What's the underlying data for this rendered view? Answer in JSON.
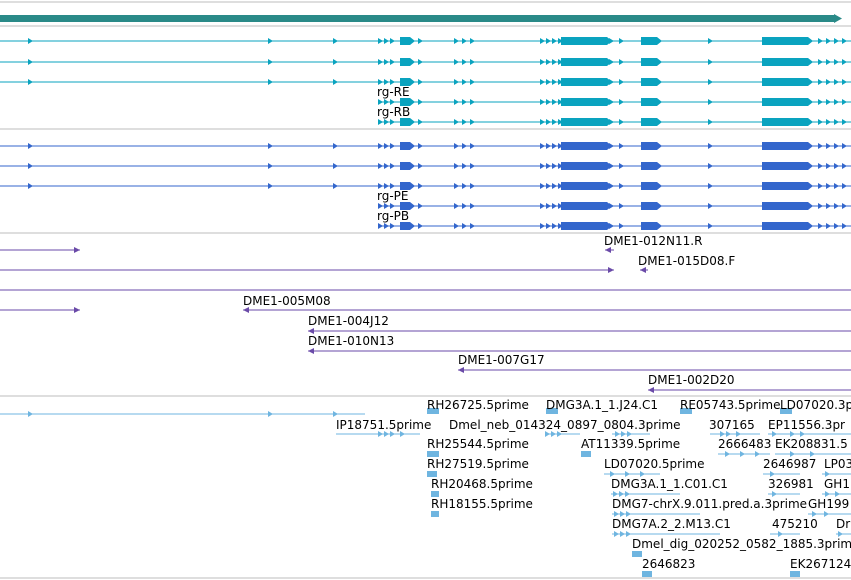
{
  "colors": {
    "gene": "#2a8a88",
    "transcript": "#0aa3bf",
    "protein": "#3366cc",
    "clone": "#6a4aa8",
    "est": "#6fb5e0",
    "divider": "#bdbdbd"
  },
  "transcripts": [
    {
      "name": "rg-RE",
      "label": "rg-RE"
    },
    {
      "name": "rg-RB",
      "label": "rg-RB"
    }
  ],
  "proteins": [
    {
      "name": "rg-PE",
      "label": "rg-PE"
    },
    {
      "name": "rg-PB",
      "label": "rg-PB"
    }
  ],
  "clones": [
    {
      "label": "DME1-012N11.R"
    },
    {
      "label": "DME1-015D08.F"
    },
    {
      "label": "DME1-005M08"
    },
    {
      "label": "DME1-004J12"
    },
    {
      "label": "DME1-010N13"
    },
    {
      "label": "DME1-007G17"
    },
    {
      "label": "DME1-002D20"
    }
  ],
  "ests": [
    {
      "label": "RH26725.5prime"
    },
    {
      "label": "DMG3A.1_1.J24.C1"
    },
    {
      "label": "RE05743.5prime"
    },
    {
      "label": "LD07020.3p"
    },
    {
      "label": "IP18751.5prime"
    },
    {
      "label": "Dmel_neb_014324_0897_0804.3prime"
    },
    {
      "label": "307165"
    },
    {
      "label": "EP11556.3pr"
    },
    {
      "label": "RH25544.5prime"
    },
    {
      "label": "AT11339.5prime"
    },
    {
      "label": "2666483"
    },
    {
      "label": "EK208831.5"
    },
    {
      "label": "RH27519.5prime"
    },
    {
      "label": "LD07020.5prime"
    },
    {
      "label": "2646987"
    },
    {
      "label": "LP03"
    },
    {
      "label": "RH20468.5prime"
    },
    {
      "label": "DMG3A.1_1.C01.C1"
    },
    {
      "label": "326981"
    },
    {
      "label": "GH1"
    },
    {
      "label": "RH18155.5prime"
    },
    {
      "label": "DMG7-chrX.9.011.pred.a.3prime"
    },
    {
      "label": "GH199"
    },
    {
      "label": "DMG7A.2_2.M13.C1"
    },
    {
      "label": "475210"
    },
    {
      "label": "Dr"
    },
    {
      "label": "Dmel_dig_020252_0582_1885.3prim"
    },
    {
      "label": "2646823"
    },
    {
      "label": "EK267124"
    }
  ]
}
